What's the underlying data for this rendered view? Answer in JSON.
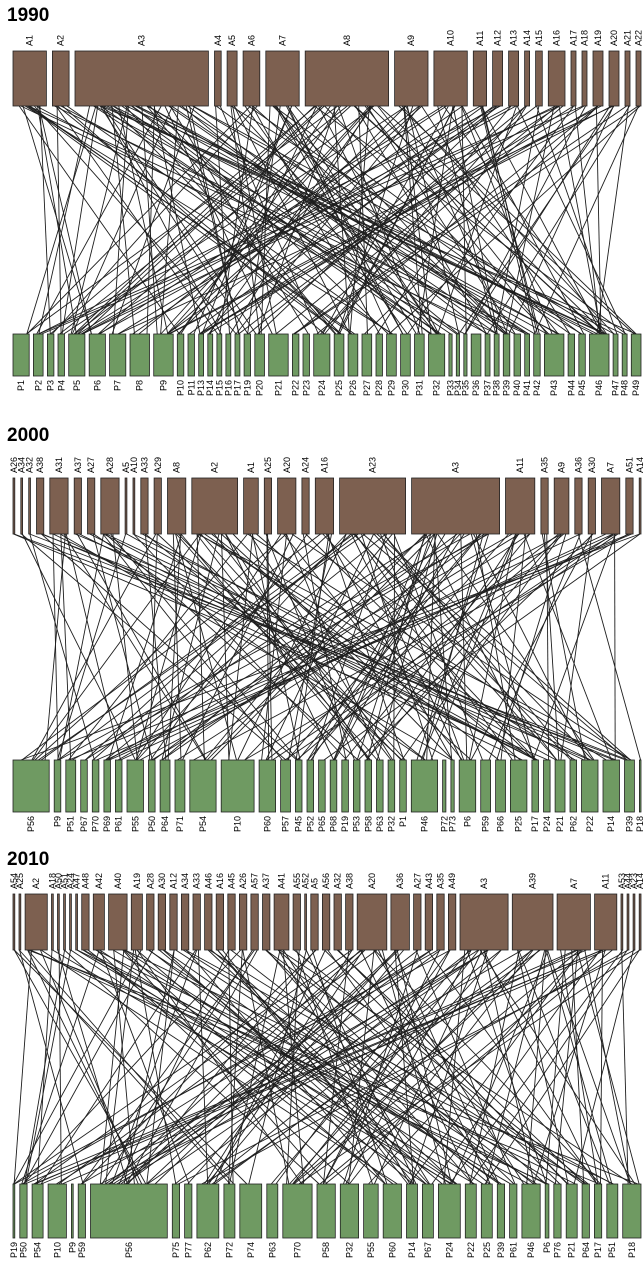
{
  "colors": {
    "animal": "#7d6050",
    "plant": "#6f9a62",
    "link": "#1e1e1e",
    "outline": "#222222"
  },
  "panels": [
    {
      "title": "1990",
      "animals": [
        {
          "label": "A1",
          "size": 2
        },
        {
          "label": "A2",
          "size": 1
        },
        {
          "label": "A3",
          "size": 8
        },
        {
          "label": "A4",
          "size": 0.4
        },
        {
          "label": "A5",
          "size": 0.6
        },
        {
          "label": "A6",
          "size": 1
        },
        {
          "label": "A7",
          "size": 2
        },
        {
          "label": "A8",
          "size": 5
        },
        {
          "label": "A9",
          "size": 2
        },
        {
          "label": "A10",
          "size": 2
        },
        {
          "label": "A11",
          "size": 0.8
        },
        {
          "label": "A12",
          "size": 0.6
        },
        {
          "label": "A13",
          "size": 0.6
        },
        {
          "label": "A14",
          "size": 0.3
        },
        {
          "label": "A15",
          "size": 0.4
        },
        {
          "label": "A16",
          "size": 1
        },
        {
          "label": "A17",
          "size": 0.3
        },
        {
          "label": "A18",
          "size": 0.3
        },
        {
          "label": "A19",
          "size": 0.6
        },
        {
          "label": "A20",
          "size": 0.6
        },
        {
          "label": "A21",
          "size": 0.3
        },
        {
          "label": "A22",
          "size": 0.3
        }
      ],
      "plants": [
        {
          "label": "P1",
          "size": 1
        },
        {
          "label": "P2",
          "size": 0.6
        },
        {
          "label": "P3",
          "size": 0.4
        },
        {
          "label": "P4",
          "size": 0.4
        },
        {
          "label": "P5",
          "size": 1
        },
        {
          "label": "P6",
          "size": 1
        },
        {
          "label": "P7",
          "size": 1
        },
        {
          "label": "P8",
          "size": 1.2
        },
        {
          "label": "P9",
          "size": 1.2
        },
        {
          "label": "P10",
          "size": 0.4
        },
        {
          "label": "P11",
          "size": 0.4
        },
        {
          "label": "P13",
          "size": 0.3
        },
        {
          "label": "P14",
          "size": 0.3
        },
        {
          "label": "P15",
          "size": 0.3
        },
        {
          "label": "P16",
          "size": 0.3
        },
        {
          "label": "P17",
          "size": 0.3
        },
        {
          "label": "P19",
          "size": 0.4
        },
        {
          "label": "P20",
          "size": 0.6
        },
        {
          "label": "P21",
          "size": 1.2
        },
        {
          "label": "P22",
          "size": 0.4
        },
        {
          "label": "P23",
          "size": 0.4
        },
        {
          "label": "P24",
          "size": 1
        },
        {
          "label": "P25",
          "size": 0.6
        },
        {
          "label": "P26",
          "size": 0.6
        },
        {
          "label": "P27",
          "size": 0.6
        },
        {
          "label": "P28",
          "size": 0.4
        },
        {
          "label": "P29",
          "size": 0.6
        },
        {
          "label": "P30",
          "size": 0.6
        },
        {
          "label": "P31",
          "size": 0.6
        },
        {
          "label": "P32",
          "size": 1
        },
        {
          "label": "P33",
          "size": 0.2
        },
        {
          "label": "P34",
          "size": 0.2
        },
        {
          "label": "P35",
          "size": 0.2
        },
        {
          "label": "P36",
          "size": 0.6
        },
        {
          "label": "P37",
          "size": 0.3
        },
        {
          "label": "P38",
          "size": 0.3
        },
        {
          "label": "P39",
          "size": 0.4
        },
        {
          "label": "P40",
          "size": 0.4
        },
        {
          "label": "P41",
          "size": 0.3
        },
        {
          "label": "P42",
          "size": 0.4
        },
        {
          "label": "P43",
          "size": 1.2
        },
        {
          "label": "P44",
          "size": 0.4
        },
        {
          "label": "P45",
          "size": 0.4
        },
        {
          "label": "P46",
          "size": 1.2
        },
        {
          "label": "P47",
          "size": 0.3
        },
        {
          "label": "P48",
          "size": 0.3
        },
        {
          "label": "P49",
          "size": 0.6
        }
      ]
    },
    {
      "title": "2000",
      "animals": [
        {
          "label": "A26",
          "size": 0.1
        },
        {
          "label": "A34",
          "size": 0.1
        },
        {
          "label": "A32",
          "size": 0.1
        },
        {
          "label": "A38",
          "size": 0.4
        },
        {
          "label": "A31",
          "size": 1
        },
        {
          "label": "A37",
          "size": 0.4
        },
        {
          "label": "A27",
          "size": 0.4
        },
        {
          "label": "A28",
          "size": 1
        },
        {
          "label": "A5",
          "size": 0.1
        },
        {
          "label": "A10",
          "size": 0.1
        },
        {
          "label": "A33",
          "size": 0.4
        },
        {
          "label": "A29",
          "size": 0.4
        },
        {
          "label": "A8",
          "size": 1
        },
        {
          "label": "A2",
          "size": 2.5
        },
        {
          "label": "A1",
          "size": 0.8
        },
        {
          "label": "A25",
          "size": 0.4
        },
        {
          "label": "A20",
          "size": 1
        },
        {
          "label": "A24",
          "size": 0.4
        },
        {
          "label": "A16",
          "size": 1
        },
        {
          "label": "A23",
          "size": 3.6
        },
        {
          "label": "A3",
          "size": 4.8
        },
        {
          "label": "A11",
          "size": 1.6
        },
        {
          "label": "A35",
          "size": 0.4
        },
        {
          "label": "A9",
          "size": 0.8
        },
        {
          "label": "A36",
          "size": 0.4
        },
        {
          "label": "A30",
          "size": 0.4
        },
        {
          "label": "A7",
          "size": 1
        },
        {
          "label": "A51",
          "size": 0.4
        },
        {
          "label": "A14",
          "size": 0.1
        }
      ],
      "plants": [
        {
          "label": "P56",
          "size": 2.2
        },
        {
          "label": "P9",
          "size": 0.4
        },
        {
          "label": "P51",
          "size": 0.6
        },
        {
          "label": "P67",
          "size": 0.4
        },
        {
          "label": "P70",
          "size": 0.4
        },
        {
          "label": "P69",
          "size": 0.4
        },
        {
          "label": "P61",
          "size": 0.4
        },
        {
          "label": "P55",
          "size": 1
        },
        {
          "label": "P50",
          "size": 0.4
        },
        {
          "label": "P64",
          "size": 0.6
        },
        {
          "label": "P71",
          "size": 0.6
        },
        {
          "label": "P54",
          "size": 1.6
        },
        {
          "label": "P10",
          "size": 2
        },
        {
          "label": "P60",
          "size": 1
        },
        {
          "label": "P57",
          "size": 0.6
        },
        {
          "label": "P45",
          "size": 0.4
        },
        {
          "label": "P52",
          "size": 0.4
        },
        {
          "label": "P65",
          "size": 0.4
        },
        {
          "label": "P68",
          "size": 0.4
        },
        {
          "label": "P19",
          "size": 0.4
        },
        {
          "label": "P53",
          "size": 0.4
        },
        {
          "label": "P58",
          "size": 0.4
        },
        {
          "label": "P63",
          "size": 0.4
        },
        {
          "label": "P32",
          "size": 0.4
        },
        {
          "label": "P1",
          "size": 0.4
        },
        {
          "label": "P46",
          "size": 1.6
        },
        {
          "label": "P72",
          "size": 0.2
        },
        {
          "label": "P73",
          "size": 0.2
        },
        {
          "label": "P6",
          "size": 1
        },
        {
          "label": "P59",
          "size": 0.6
        },
        {
          "label": "P66",
          "size": 0.6
        },
        {
          "label": "P25",
          "size": 1
        },
        {
          "label": "P17",
          "size": 0.4
        },
        {
          "label": "P24",
          "size": 0.4
        },
        {
          "label": "P21",
          "size": 0.6
        },
        {
          "label": "P62",
          "size": 0.4
        },
        {
          "label": "P22",
          "size": 1
        },
        {
          "label": "P14",
          "size": 1
        },
        {
          "label": "P39",
          "size": 0.6
        },
        {
          "label": "P18",
          "size": 0.1
        }
      ]
    },
    {
      "title": "2010",
      "animals": [
        {
          "label": "A54",
          "size": 0.1
        },
        {
          "label": "A25",
          "size": 0.1
        },
        {
          "label": "A2",
          "size": 1.2
        },
        {
          "label": "A18",
          "size": 0.1
        },
        {
          "label": "A50",
          "size": 0.1
        },
        {
          "label": "A51",
          "size": 0.1
        },
        {
          "label": "A24",
          "size": 0.1
        },
        {
          "label": "A47",
          "size": 0.1
        },
        {
          "label": "A48",
          "size": 0.4
        },
        {
          "label": "A42",
          "size": 0.6
        },
        {
          "label": "A40",
          "size": 1
        },
        {
          "label": "A19",
          "size": 0.6
        },
        {
          "label": "A28",
          "size": 0.4
        },
        {
          "label": "A30",
          "size": 0.4
        },
        {
          "label": "A12",
          "size": 0.4
        },
        {
          "label": "A34",
          "size": 0.4
        },
        {
          "label": "A33",
          "size": 0.4
        },
        {
          "label": "A46",
          "size": 0.4
        },
        {
          "label": "A16",
          "size": 0.4
        },
        {
          "label": "A45",
          "size": 0.4
        },
        {
          "label": "A26",
          "size": 0.4
        },
        {
          "label": "A57",
          "size": 0.4
        },
        {
          "label": "A37",
          "size": 0.4
        },
        {
          "label": "A41",
          "size": 0.8
        },
        {
          "label": "A55",
          "size": 0.4
        },
        {
          "label": "A52",
          "size": 0.1
        },
        {
          "label": "A5",
          "size": 0.4
        },
        {
          "label": "A56",
          "size": 0.4
        },
        {
          "label": "A32",
          "size": 0.4
        },
        {
          "label": "A38",
          "size": 0.4
        },
        {
          "label": "A20",
          "size": 1.6
        },
        {
          "label": "A36",
          "size": 1
        },
        {
          "label": "A27",
          "size": 0.4
        },
        {
          "label": "A43",
          "size": 0.4
        },
        {
          "label": "A35",
          "size": 0.4
        },
        {
          "label": "A49",
          "size": 0.4
        },
        {
          "label": "A3",
          "size": 2.6
        },
        {
          "label": "A39",
          "size": 2.2
        },
        {
          "label": "A7",
          "size": 1.8
        },
        {
          "label": "A11",
          "size": 1.2
        },
        {
          "label": "A53",
          "size": 0.1
        },
        {
          "label": "A44",
          "size": 0.1
        },
        {
          "label": "A23",
          "size": 0.1
        },
        {
          "label": "A14",
          "size": 0.1
        }
      ],
      "plants": [
        {
          "label": "P19",
          "size": 0.1
        },
        {
          "label": "P50",
          "size": 0.4
        },
        {
          "label": "P54",
          "size": 0.6
        },
        {
          "label": "P10",
          "size": 1
        },
        {
          "label": "P9",
          "size": 0.1
        },
        {
          "label": "P59",
          "size": 0.4
        },
        {
          "label": "P56",
          "size": 4.2
        },
        {
          "label": "P75",
          "size": 0.4
        },
        {
          "label": "P77",
          "size": 0.4
        },
        {
          "label": "P62",
          "size": 1.2
        },
        {
          "label": "P72",
          "size": 0.6
        },
        {
          "label": "P74",
          "size": 1.2
        },
        {
          "label": "P63",
          "size": 0.6
        },
        {
          "label": "P70",
          "size": 1.6
        },
        {
          "label": "P58",
          "size": 1
        },
        {
          "label": "P32",
          "size": 1
        },
        {
          "label": "P55",
          "size": 0.8
        },
        {
          "label": "P60",
          "size": 1
        },
        {
          "label": "P14",
          "size": 0.6
        },
        {
          "label": "P67",
          "size": 0.6
        },
        {
          "label": "P24",
          "size": 1.2
        },
        {
          "label": "P22",
          "size": 0.6
        },
        {
          "label": "P25",
          "size": 0.6
        },
        {
          "label": "P39",
          "size": 0.4
        },
        {
          "label": "P61",
          "size": 0.4
        },
        {
          "label": "P46",
          "size": 1
        },
        {
          "label": "P6",
          "size": 0.2
        },
        {
          "label": "P76",
          "size": 0.4
        },
        {
          "label": "P21",
          "size": 0.6
        },
        {
          "label": "P64",
          "size": 0.4
        },
        {
          "label": "P17",
          "size": 0.4
        },
        {
          "label": "P51",
          "size": 0.6
        },
        {
          "label": "P18",
          "size": 1
        }
      ]
    }
  ]
}
